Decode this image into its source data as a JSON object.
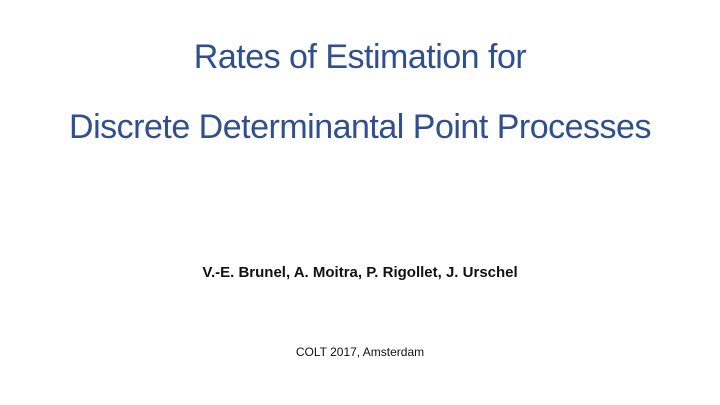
{
  "title": {
    "line1": "Rates of Estimation for",
    "line2": "Discrete Determinantal Point Processes"
  },
  "authors": "V.-E. Brunel, A. Moitra, P. Rigollet, J. Urschel",
  "venue": "COLT 2017, Amsterdam"
}
